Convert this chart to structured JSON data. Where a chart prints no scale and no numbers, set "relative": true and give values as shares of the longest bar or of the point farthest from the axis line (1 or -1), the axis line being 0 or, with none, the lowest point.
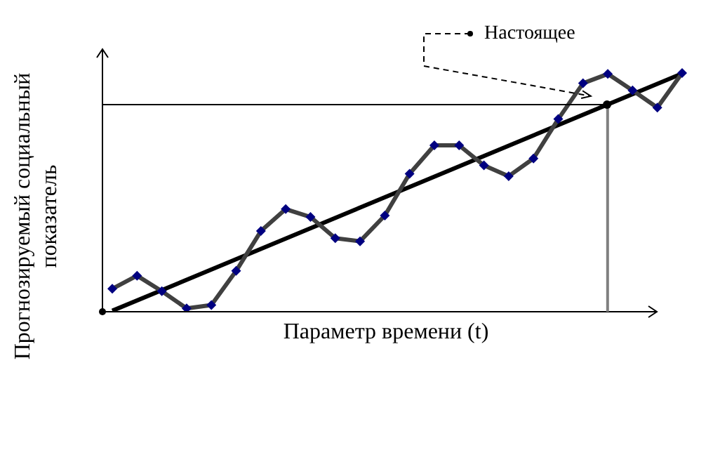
{
  "chart_data": {
    "type": "line",
    "relative": true,
    "xlabel": "Параметр времени (t)",
    "ylabel": "Прогнозируемый социальный показатель",
    "categories": [
      null,
      null,
      null,
      null,
      null,
      null,
      null,
      null,
      null,
      null,
      null,
      null,
      null,
      null,
      null,
      null,
      null,
      null,
      null,
      null,
      null,
      null,
      null,
      null
    ],
    "legend": false,
    "series": [
      {
        "color": "#404040",
        "marker": "diamond",
        "values": [
          0.096,
          0.151,
          0.086,
          0.014,
          0.028,
          0.171,
          0.338,
          0.43,
          0.397,
          0.308,
          0.295,
          0.403,
          0.578,
          0.697,
          0.697,
          0.613,
          0.568,
          0.642,
          0.807,
          0.957,
          0.996,
          0.927,
          0.855,
          1
        ]
      },
      {
        "color": "#000000",
        "marker": "none",
        "values": [
          0.004,
          null,
          null,
          null,
          null,
          null,
          null,
          null,
          null,
          null,
          null,
          null,
          null,
          null,
          null,
          null,
          null,
          null,
          null,
          null,
          null,
          null,
          null,
          0.998
        ]
      }
    ],
    "ref_lines": [
      {
        "axis": "y",
        "value": 0.868,
        "color": "#000000"
      }
    ],
    "annotations": [
      "Настоящее"
    ]
  }
}
